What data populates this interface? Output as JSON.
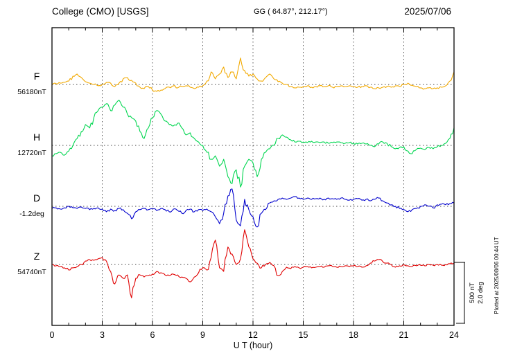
{
  "header": {
    "station": "College (CMO)  [USGS]",
    "coords": "GG ( 64.87°, 212.17°)",
    "date": "2025/07/06"
  },
  "plotted_at": "Plotted at 2025/08/06 00:44 UT",
  "scale_bar": {
    "nt_label": "500 nT",
    "deg_label": "2.0 deg"
  },
  "chart_data": {
    "type": "line",
    "title": "College (CMO) [USGS] magnetogram",
    "date": "2025/07/06",
    "xlabel": "U T (hour)",
    "x_ticks": [
      0,
      3,
      6,
      9,
      12,
      15,
      18,
      21,
      24
    ],
    "xlim": [
      0,
      24
    ],
    "x_start": 0,
    "x_step_hours": 0.25,
    "grid": "dotted vertical at 3h intervals, dotted horizontal at channel baselines",
    "scale_per_division": {
      "nT": 500,
      "deg": 2.0
    },
    "series": [
      {
        "name": "F",
        "color": "#f2a900",
        "baseline_value": "56180nT",
        "unit": "nT",
        "values": [
          0,
          6,
          11,
          17,
          28,
          68,
          86,
          57,
          23,
          11,
          0,
          -11,
          0,
          17,
          11,
          -17,
          11,
          46,
          57,
          34,
          11,
          -23,
          -34,
          -17,
          -46,
          -57,
          -46,
          -34,
          -23,
          -11,
          -28,
          -17,
          -11,
          -23,
          -34,
          -23,
          -11,
          28,
          103,
          46,
          86,
          143,
          57,
          103,
          46,
          217,
          114,
          68,
          86,
          46,
          28,
          57,
          86,
          46,
          23,
          11,
          0,
          -17,
          -28,
          -23,
          -17,
          -11,
          -23,
          -17,
          -11,
          -17,
          -11,
          -23,
          -17,
          -11,
          -17,
          -11,
          -17,
          -23,
          -17,
          -11,
          -23,
          -34,
          -28,
          -23,
          -17,
          -23,
          -11,
          -17,
          0,
          11,
          -6,
          -17,
          -28,
          -34,
          -28,
          -34,
          -28,
          -23,
          -11,
          28,
          103
        ]
      },
      {
        "name": "H",
        "color": "#00d64f",
        "baseline_value": "12720nT",
        "unit": "nT",
        "values": [
          -86,
          -68,
          -57,
          -80,
          -46,
          0,
          57,
          114,
          171,
          143,
          228,
          285,
          314,
          342,
          285,
          331,
          371,
          314,
          257,
          228,
          200,
          114,
          57,
          143,
          228,
          285,
          257,
          200,
          171,
          160,
          182,
          143,
          86,
          103,
          57,
          28,
          0,
          -57,
          -114,
          -86,
          -171,
          -114,
          -257,
          -314,
          -200,
          -342,
          -171,
          -114,
          -143,
          -257,
          -114,
          -57,
          -28,
          0,
          57,
          86,
          68,
          46,
          28,
          34,
          28,
          23,
          34,
          28,
          23,
          28,
          17,
          23,
          28,
          23,
          17,
          23,
          17,
          11,
          17,
          11,
          0,
          -11,
          11,
          28,
          17,
          -11,
          -28,
          -17,
          -11,
          -46,
          -68,
          -34,
          -23,
          -34,
          -17,
          -28,
          -11,
          0,
          17,
          57,
          143
        ]
      },
      {
        "name": "D",
        "color": "#0000cd",
        "baseline_value": "-1.2deg",
        "unit": "deg",
        "values": [
          -0.07,
          -0.05,
          -0.09,
          -0.05,
          0,
          -0.05,
          -0.07,
          -0.02,
          -0.07,
          -0.11,
          -0.07,
          -0.05,
          -0.09,
          -0.18,
          -0.09,
          -0.14,
          -0.07,
          -0.11,
          -0.23,
          -0.41,
          -0.18,
          -0.11,
          -0.07,
          -0.11,
          -0.09,
          -0.14,
          -0.07,
          -0.11,
          -0.18,
          -0.09,
          -0.14,
          -0.23,
          -0.14,
          -0.09,
          -0.18,
          -0.11,
          -0.14,
          -0.09,
          -0.18,
          -0.34,
          -0.57,
          -0.23,
          0.34,
          0.57,
          -0.45,
          -0.64,
          0.23,
          -0.11,
          -0.34,
          -0.68,
          -0.23,
          -0.11,
          0.11,
          0.18,
          0.23,
          0.27,
          0.23,
          0.27,
          0.32,
          0.27,
          0.23,
          0.27,
          0.23,
          0.25,
          0.27,
          0.23,
          0.27,
          0.25,
          0.23,
          0.27,
          0.23,
          0.2,
          0.23,
          0.25,
          0.2,
          0.23,
          0.18,
          0.23,
          0.27,
          0.18,
          0.11,
          0.05,
          0,
          -0.07,
          -0.11,
          -0.18,
          -0.11,
          -0.07,
          0,
          0.05,
          0,
          -0.05,
          0.05,
          0.07,
          0.05,
          0.09,
          0.11
        ]
      },
      {
        "name": "Z",
        "color": "#e00000",
        "baseline_value": "54740nT",
        "unit": "nT",
        "values": [
          0,
          -11,
          -17,
          -28,
          -46,
          -28,
          -17,
          0,
          28,
          40,
          34,
          46,
          57,
          28,
          -57,
          -160,
          -86,
          -114,
          -86,
          -274,
          -114,
          -86,
          -103,
          -91,
          -80,
          -57,
          -68,
          -86,
          -91,
          -80,
          -86,
          -103,
          -114,
          -143,
          -103,
          -68,
          -28,
          -46,
          57,
          200,
          -28,
          -57,
          143,
          86,
          0,
          46,
          285,
          143,
          46,
          11,
          -28,
          0,
          17,
          -11,
          -91,
          -57,
          -23,
          -34,
          -17,
          -28,
          -23,
          -17,
          -28,
          -23,
          -17,
          -23,
          -11,
          -17,
          -23,
          -17,
          -11,
          -17,
          -11,
          -17,
          -23,
          -11,
          11,
          28,
          40,
          23,
          11,
          0,
          -23,
          -11,
          0,
          -11,
          -17,
          -11,
          -6,
          -11,
          0,
          -6,
          0,
          -6,
          0,
          6,
          11
        ]
      }
    ]
  }
}
